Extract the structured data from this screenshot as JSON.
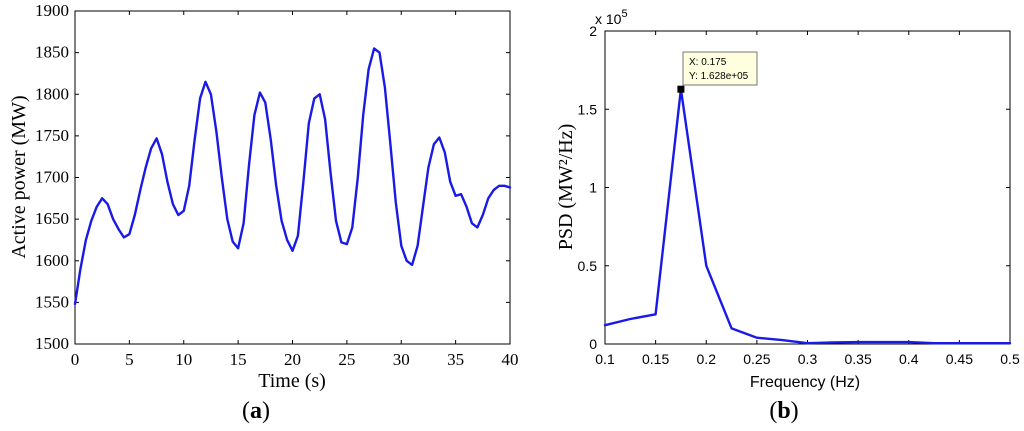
{
  "chart_data": [
    {
      "type": "line",
      "caption": "a",
      "xlabel": "Time (s)",
      "ylabel": "Active power (MW)",
      "xlim": [
        0,
        40
      ],
      "ylim": [
        1500,
        1900
      ],
      "xticks": [
        "0",
        "5",
        "10",
        "15",
        "20",
        "25",
        "30",
        "35",
        "40"
      ],
      "yticks": [
        "1500",
        "1550",
        "1600",
        "1650",
        "1700",
        "1750",
        "1800",
        "1850",
        "1900"
      ],
      "grid": false,
      "color": "#1a1ae6",
      "x": [
        0,
        0.5,
        1,
        1.5,
        2,
        2.5,
        3,
        3.5,
        4,
        4.5,
        5,
        5.5,
        6,
        6.5,
        7,
        7.5,
        8,
        8.5,
        9,
        9.5,
        10,
        10.5,
        11,
        11.5,
        12,
        12.5,
        13,
        13.5,
        14,
        14.5,
        15,
        15.5,
        16,
        16.5,
        17,
        17.5,
        18,
        18.5,
        19,
        19.5,
        20,
        20.5,
        21,
        21.5,
        22,
        22.5,
        23,
        23.5,
        24,
        24.5,
        25,
        25.5,
        26,
        26.5,
        27,
        27.5,
        28,
        28.5,
        29,
        29.5,
        30,
        30.5,
        31,
        31.5,
        32,
        32.5,
        33,
        33.5,
        34,
        34.5,
        35,
        35.5,
        36,
        36.5,
        37,
        37.5,
        38,
        38.5,
        39,
        39.5,
        40
      ],
      "y": [
        1548,
        1590,
        1625,
        1648,
        1665,
        1675,
        1668,
        1650,
        1638,
        1628,
        1632,
        1655,
        1685,
        1712,
        1735,
        1747,
        1728,
        1695,
        1668,
        1655,
        1660,
        1690,
        1745,
        1795,
        1815,
        1800,
        1755,
        1700,
        1650,
        1623,
        1615,
        1645,
        1715,
        1775,
        1802,
        1790,
        1745,
        1690,
        1648,
        1625,
        1612,
        1630,
        1695,
        1765,
        1795,
        1800,
        1770,
        1705,
        1648,
        1622,
        1620,
        1640,
        1700,
        1775,
        1830,
        1855,
        1850,
        1808,
        1740,
        1670,
        1618,
        1600,
        1595,
        1618,
        1665,
        1712,
        1740,
        1748,
        1730,
        1695,
        1678,
        1680,
        1665,
        1645,
        1640,
        1655,
        1675,
        1685,
        1690,
        1690,
        1688
      ]
    },
    {
      "type": "line",
      "caption": "b",
      "xlabel": "Frequency (Hz)",
      "ylabel": "PSD (MW²/Hz)",
      "xlim": [
        0.1,
        0.5
      ],
      "ylim": [
        0,
        2
      ],
      "y_multiplier": "x 10",
      "y_exponent": "5",
      "xticks": [
        "0.1",
        "0.15",
        "0.2",
        "0.25",
        "0.3",
        "0.35",
        "0.4",
        "0.45",
        "0.5"
      ],
      "yticks": [
        "0",
        "0.5",
        "1",
        "1.5",
        "2"
      ],
      "grid": false,
      "color": "#1a1ae6",
      "x": [
        0.1,
        0.125,
        0.15,
        0.175,
        0.2,
        0.225,
        0.25,
        0.275,
        0.3,
        0.325,
        0.35,
        0.375,
        0.4,
        0.425,
        0.45,
        0.475,
        0.5
      ],
      "y": [
        0.12,
        0.16,
        0.19,
        1.628,
        0.5,
        0.1,
        0.04,
        0.025,
        0.005,
        0.01,
        0.012,
        0.012,
        0.012,
        0.005,
        0.005,
        0.005,
        0.005
      ],
      "datatip": {
        "x": 0.175,
        "y": 1.628,
        "line1": "X: 0.175",
        "line2": "Y: 1.628e+05"
      }
    }
  ],
  "captions": {
    "a": "a",
    "b": "b"
  }
}
